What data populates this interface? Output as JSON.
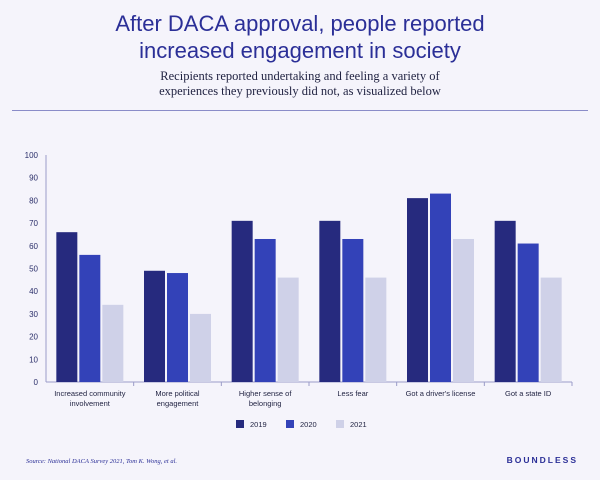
{
  "header": {
    "title_line1": "After DACA approval, people reported",
    "title_line2": "increased engagement in society",
    "subtitle_line1": "Recipients reported undertaking and feeling a variety of",
    "subtitle_line2": "experiences they previously did not, as visualized below"
  },
  "footer": {
    "source": "Source: National DACA Survey 2021, Tom K. Wong, et al.",
    "logo": "BOUNDLESS"
  },
  "chart_data": {
    "type": "bar",
    "categories": [
      [
        "Increased community",
        "involvement"
      ],
      [
        "More political",
        "engagement"
      ],
      [
        "Higher sense of",
        "belonging"
      ],
      [
        "Less fear"
      ],
      [
        "Got a driver's license"
      ],
      [
        "Got a state ID"
      ]
    ],
    "series": [
      {
        "name": "2019",
        "color": "#262a7e",
        "values": [
          66,
          49,
          71,
          71,
          81,
          71
        ]
      },
      {
        "name": "2020",
        "color": "#3342b8",
        "values": [
          56,
          48,
          63,
          63,
          83,
          61
        ]
      },
      {
        "name": "2021",
        "color": "#cfd1e8",
        "values": [
          34,
          30,
          46,
          46,
          63,
          46
        ]
      }
    ],
    "ylim": [
      0,
      100
    ],
    "yticks": [
      "0",
      "10",
      "20",
      "30",
      "40",
      "50",
      "60",
      "70",
      "80",
      "90",
      "100"
    ],
    "grid": false,
    "legend": "bottom-center"
  }
}
